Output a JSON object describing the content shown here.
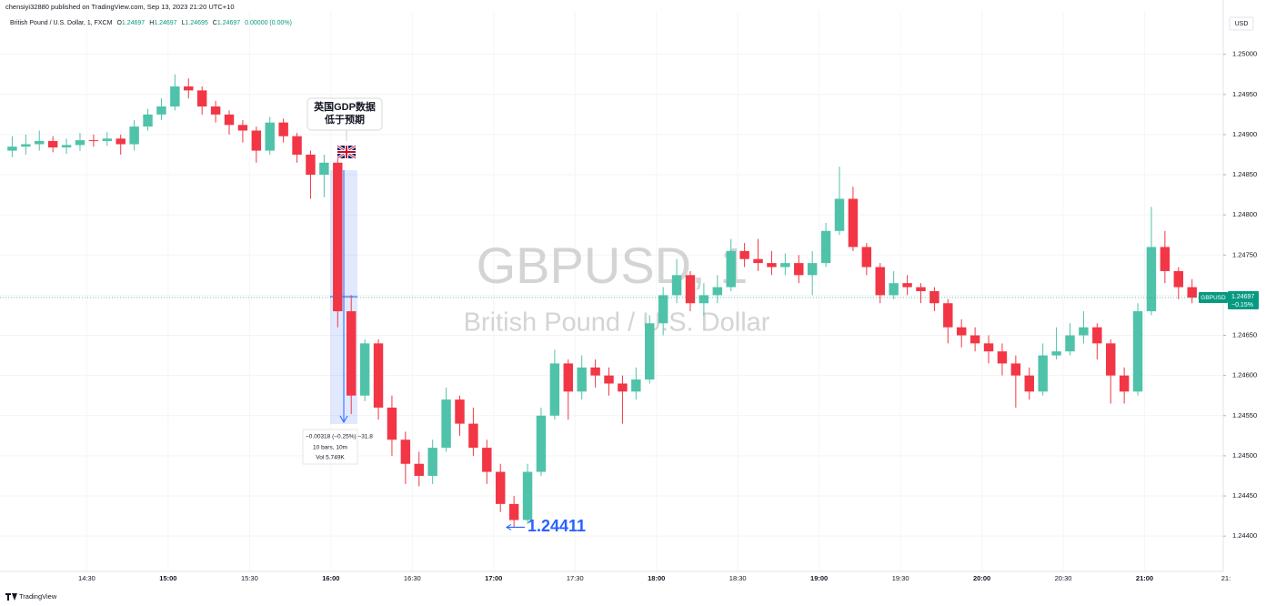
{
  "header": {
    "publisher": "chensiyi32880 published on TradingView.com, Sep 13, 2023 21:20 UTC+10",
    "symbol": "British Pound / U.S. Dollar, 1, FXCM",
    "ohlc": [
      {
        "key": "O",
        "value": "1.24697"
      },
      {
        "key": "H",
        "value": "1.24697"
      },
      {
        "key": "L",
        "value": "1.24695"
      },
      {
        "key": "C",
        "value": "1.24697"
      }
    ],
    "change": "0.00000 (0.00%)"
  },
  "footer": {
    "brand": "TradingView"
  },
  "chart_data": {
    "type": "candlestick",
    "currency": "USD",
    "watermark_title": "GBPUSD, 1",
    "watermark_subtitle": "British Pound / U.S. Dollar",
    "up_color": "#4fc3a9",
    "down_color": "#f23645",
    "grid": true,
    "x": [
      "14:00",
      "14:05",
      "14:10",
      "14:15",
      "14:20",
      "14:25",
      "14:30",
      "14:35",
      "14:40",
      "14:45",
      "14:50",
      "14:55",
      "15:00",
      "15:05",
      "15:10",
      "15:15",
      "15:20",
      "15:25",
      "15:30",
      "15:35",
      "15:40",
      "15:45",
      "15:50",
      "15:55",
      "16:00",
      "16:05",
      "16:10",
      "16:15",
      "16:20",
      "16:25",
      "16:30",
      "16:35",
      "16:40",
      "16:45",
      "16:50",
      "16:55",
      "17:00",
      "17:05",
      "17:10",
      "17:15",
      "17:20",
      "17:25",
      "17:30",
      "17:35",
      "17:40",
      "17:45",
      "17:50",
      "17:55",
      "18:00",
      "18:05",
      "18:10",
      "18:15",
      "18:20",
      "18:25",
      "18:30",
      "18:35",
      "18:40",
      "18:45",
      "18:50",
      "18:55",
      "19:00",
      "19:05",
      "19:10",
      "19:15",
      "19:20",
      "19:25",
      "19:30",
      "19:35",
      "19:40",
      "19:45",
      "19:50",
      "19:55",
      "20:00",
      "20:05",
      "20:10",
      "20:15",
      "20:20",
      "20:25",
      "20:30",
      "20:35",
      "20:40",
      "20:45",
      "20:50",
      "20:55",
      "21:00",
      "21:05",
      "21:10",
      "21:15"
    ],
    "open": [
      1.2488,
      1.24885,
      1.24888,
      1.24892,
      1.24884,
      1.24887,
      1.24893,
      1.24892,
      1.24895,
      1.24888,
      1.2491,
      1.24925,
      1.24935,
      1.2496,
      1.24955,
      1.24935,
      1.24925,
      1.24912,
      1.24905,
      1.2488,
      1.24915,
      1.24898,
      1.24875,
      1.2485,
      1.24865,
      1.2468,
      1.24575,
      1.2464,
      1.2456,
      1.2452,
      1.2449,
      1.24475,
      1.2451,
      1.2457,
      1.2454,
      1.2451,
      1.2448,
      1.2444,
      1.2442,
      1.2448,
      1.2455,
      1.24615,
      1.2458,
      1.2461,
      1.246,
      1.2459,
      1.2458,
      1.24595,
      1.24665,
      1.247,
      1.24725,
      1.2469,
      1.247,
      1.2471,
      1.24755,
      1.24745,
      1.2474,
      1.24735,
      1.2474,
      1.24725,
      1.2474,
      1.2478,
      1.2482,
      1.2476,
      1.24735,
      1.247,
      1.24715,
      1.2471,
      1.24705,
      1.2469,
      1.2466,
      1.2465,
      1.2464,
      1.2463,
      1.24615,
      1.246,
      1.2458,
      1.24625,
      1.2463,
      1.2465,
      1.2466,
      1.2464,
      1.246,
      1.2458,
      1.2468,
      1.2476,
      1.2473,
      1.2471
    ],
    "high": [
      1.24898,
      1.249,
      1.24905,
      1.24898,
      1.24895,
      1.24902,
      1.249,
      1.24903,
      1.249,
      1.24918,
      1.24932,
      1.24945,
      1.24975,
      1.2497,
      1.2496,
      1.24942,
      1.2493,
      1.24918,
      1.2491,
      1.24922,
      1.2492,
      1.24902,
      1.2488,
      1.24875,
      1.2487,
      1.247,
      1.24645,
      1.24645,
      1.24575,
      1.2453,
      1.24505,
      1.2452,
      1.24585,
      1.24575,
      1.2456,
      1.2452,
      1.2449,
      1.2445,
      1.2449,
      1.2456,
      1.24632,
      1.2462,
      1.24625,
      1.2462,
      1.2461,
      1.246,
      1.2461,
      1.24675,
      1.2471,
      1.24745,
      1.2473,
      1.24715,
      1.24725,
      1.2477,
      1.24765,
      1.2477,
      1.24755,
      1.24752,
      1.2475,
      1.24755,
      1.2479,
      1.2486,
      1.24835,
      1.24765,
      1.2474,
      1.2473,
      1.24725,
      1.24715,
      1.2471,
      1.24695,
      1.2467,
      1.2466,
      1.2465,
      1.2464,
      1.24625,
      1.2461,
      1.2464,
      1.2466,
      1.24665,
      1.2468,
      1.24665,
      1.24645,
      1.2461,
      1.2469,
      1.2481,
      1.2478,
      1.24735,
      1.2472
    ],
    "low": [
      1.24872,
      1.24875,
      1.2488,
      1.24878,
      1.24876,
      1.2488,
      1.24885,
      1.24886,
      1.24875,
      1.2488,
      1.24905,
      1.24918,
      1.2493,
      1.24945,
      1.24925,
      1.24915,
      1.249,
      1.2489,
      1.24865,
      1.24875,
      1.2489,
      1.24865,
      1.2482,
      1.24822,
      1.2466,
      1.24552,
      1.24568,
      1.24545,
      1.245,
      1.24465,
      1.24462,
      1.24465,
      1.24505,
      1.24525,
      1.245,
      1.24465,
      1.2443,
      1.24411,
      1.24415,
      1.24475,
      1.24545,
      1.24545,
      1.2457,
      1.24585,
      1.24575,
      1.2454,
      1.2457,
      1.2459,
      1.2465,
      1.2469,
      1.2468,
      1.24675,
      1.2469,
      1.24705,
      1.24735,
      1.2473,
      1.24725,
      1.24725,
      1.24715,
      1.247,
      1.24735,
      1.24775,
      1.24755,
      1.24725,
      1.2469,
      1.24695,
      1.247,
      1.2469,
      1.2468,
      1.2464,
      1.24635,
      1.2463,
      1.24615,
      1.246,
      1.2456,
      1.2457,
      1.24575,
      1.2462,
      1.24625,
      1.2464,
      1.2462,
      1.24565,
      1.24565,
      1.24575,
      1.24675,
      1.24715,
      1.24695,
      1.2469
    ],
    "close": [
      1.24885,
      1.24888,
      1.24892,
      1.24884,
      1.24887,
      1.24893,
      1.24892,
      1.24895,
      1.24888,
      1.2491,
      1.24925,
      1.24935,
      1.2496,
      1.24955,
      1.24935,
      1.24925,
      1.24912,
      1.24905,
      1.2488,
      1.24915,
      1.24898,
      1.24875,
      1.2485,
      1.24865,
      1.2468,
      1.24575,
      1.2464,
      1.2456,
      1.2452,
      1.2449,
      1.24475,
      1.2451,
      1.2457,
      1.2454,
      1.2451,
      1.2448,
      1.2444,
      1.2442,
      1.2448,
      1.2455,
      1.24615,
      1.2458,
      1.2461,
      1.246,
      1.2459,
      1.2458,
      1.24595,
      1.24665,
      1.247,
      1.24725,
      1.2469,
      1.247,
      1.2471,
      1.24755,
      1.24745,
      1.2474,
      1.24735,
      1.2474,
      1.24725,
      1.2474,
      1.2478,
      1.2482,
      1.2476,
      1.24735,
      1.247,
      1.24715,
      1.2471,
      1.24705,
      1.2469,
      1.2466,
      1.2465,
      1.2464,
      1.2463,
      1.24615,
      1.246,
      1.2458,
      1.24625,
      1.2463,
      1.2465,
      1.2466,
      1.2464,
      1.246,
      1.2458,
      1.2468,
      1.2476,
      1.2473,
      1.2471,
      1.24697
    ],
    "xlim": [
      "13:58",
      "21:29"
    ],
    "xticks": [
      "14:30",
      "15:00",
      "15:30",
      "16:00",
      "16:30",
      "17:00",
      "17:30",
      "18:00",
      "18:30",
      "19:00",
      "19:30",
      "20:00",
      "20:30",
      "21:00",
      {
        "value": "21:30",
        "label": "21:"
      }
    ],
    "ylim": [
      1.24356,
      1.25054
    ],
    "yticks": [
      {
        "value": 1.244,
        "label": "1.24400"
      },
      {
        "value": 1.2445,
        "label": "1.24450"
      },
      {
        "value": 1.245,
        "label": "1.24500"
      },
      {
        "value": 1.2455,
        "label": "1.24550"
      },
      {
        "value": 1.246,
        "label": "1.24600"
      },
      {
        "value": 1.2465,
        "label": "1.24650"
      },
      {
        "value": 1.247,
        "label": "1.24700"
      },
      {
        "value": 1.2475,
        "label": "1.24750"
      },
      {
        "value": 1.248,
        "label": "1.24800"
      },
      {
        "value": 1.2485,
        "label": "1.24850"
      },
      {
        "value": 1.249,
        "label": "1.24900"
      },
      {
        "value": 1.2495,
        "label": "1.24950"
      },
      {
        "value": 1.25,
        "label": "1.25000"
      }
    ],
    "last_price": {
      "name": "GBPUSD",
      "value": 1.24697,
      "change": "−0.15%"
    },
    "low_marker": {
      "value": 1.24411
    },
    "callout": [
      "英国GDP数据",
      "低于预期"
    ],
    "measure": [
      "−0.00318 (−0.25%) −31.8",
      "10 bars, 10m",
      "Vol 5.749K"
    ]
  }
}
